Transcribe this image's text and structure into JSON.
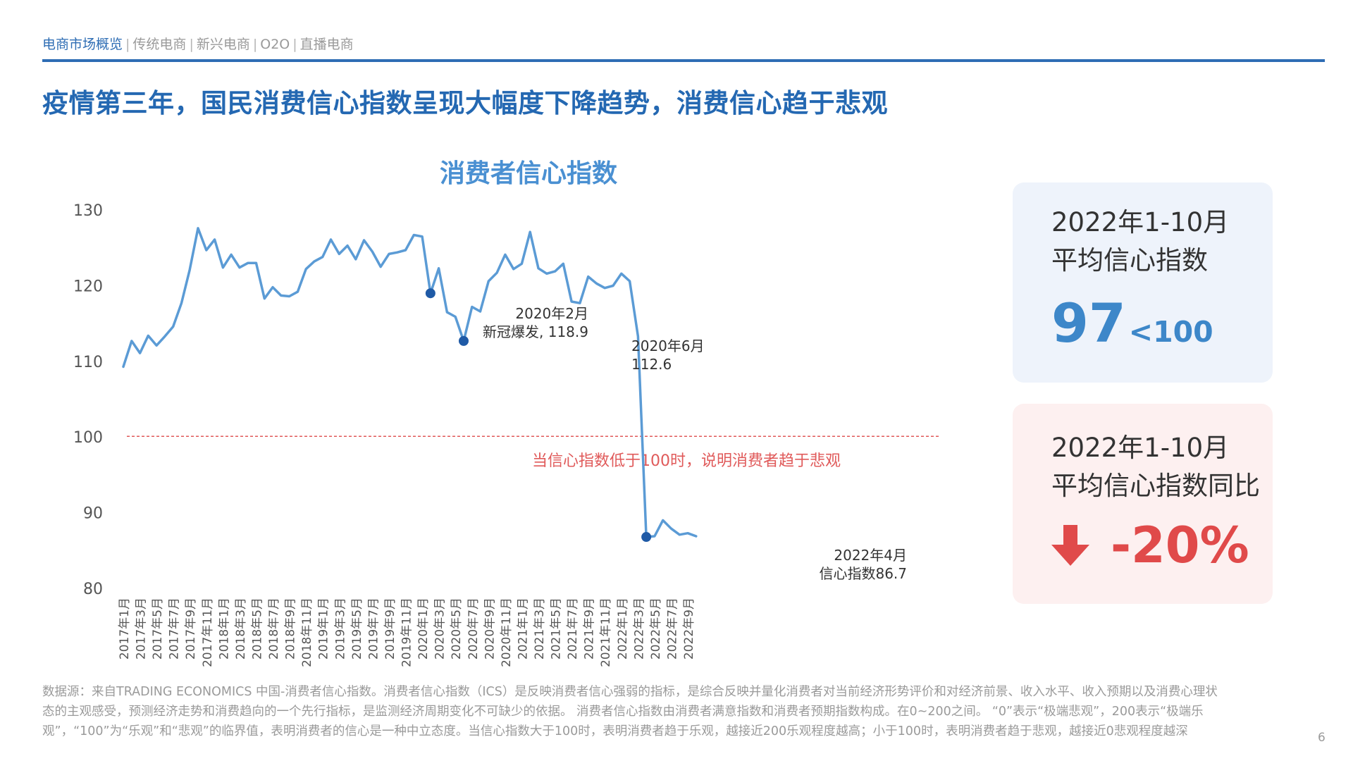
{
  "nav": {
    "items": [
      {
        "label": "电商市场概览",
        "active": true
      },
      {
        "label": "传统电商",
        "active": false
      },
      {
        "label": "新兴电商",
        "active": false
      },
      {
        "label": "O2O",
        "active": false
      },
      {
        "label": "直播电商",
        "active": false
      }
    ],
    "separator": "|"
  },
  "headline": "疫情第三年，国民消费信心指数呈现大幅度下降趋势，消费信心趋于悲观",
  "colors": {
    "brand_blue": "#2e6db4",
    "line": "#5b9bd5",
    "threshold": "#e05a5a",
    "warning_red": "#e04a4a"
  },
  "chart_data": {
    "type": "line",
    "title": "消费者信心指数",
    "ylim": [
      80,
      130
    ],
    "y_ticks": [
      130,
      120,
      110,
      100,
      90,
      80
    ],
    "x_tick_labels": [
      "2017年1月",
      "2017年3月",
      "2017年5月",
      "2017年7月",
      "2017年9月",
      "2017年11月",
      "2018年1月",
      "2018年3月",
      "2018年5月",
      "2018年7月",
      "2018年9月",
      "2018年11月",
      "2019年1月",
      "2019年3月",
      "2019年5月",
      "2019年7月",
      "2019年9月",
      "2019年11月",
      "2020年1月",
      "2020年3月",
      "2020年5月",
      "2020年7月",
      "2020年9月",
      "2020年11月",
      "2021年1月",
      "2021年3月",
      "2021年5月",
      "2021年7月",
      "2021年9月",
      "2021年11月",
      "2022年1月",
      "2022年3月",
      "2022年5月",
      "2022年7月",
      "2022年9月"
    ],
    "x": [
      "2017-01",
      "2017-02",
      "2017-03",
      "2017-04",
      "2017-05",
      "2017-06",
      "2017-07",
      "2017-08",
      "2017-09",
      "2017-10",
      "2017-11",
      "2017-12",
      "2018-01",
      "2018-02",
      "2018-03",
      "2018-04",
      "2018-05",
      "2018-06",
      "2018-07",
      "2018-08",
      "2018-09",
      "2018-10",
      "2018-11",
      "2018-12",
      "2019-01",
      "2019-02",
      "2019-03",
      "2019-04",
      "2019-05",
      "2019-06",
      "2019-07",
      "2019-08",
      "2019-09",
      "2019-10",
      "2019-11",
      "2019-12",
      "2020-01",
      "2020-02",
      "2020-03",
      "2020-04",
      "2020-05",
      "2020-06",
      "2020-07",
      "2020-08",
      "2020-09",
      "2020-10",
      "2020-11",
      "2020-12",
      "2021-01",
      "2021-02",
      "2021-03",
      "2021-04",
      "2021-05",
      "2021-06",
      "2021-07",
      "2021-08",
      "2021-09",
      "2021-10",
      "2021-11",
      "2021-12",
      "2022-01",
      "2022-02",
      "2022-03",
      "2022-04",
      "2022-05",
      "2022-06",
      "2022-07",
      "2022-08",
      "2022-09",
      "2022-10"
    ],
    "values": [
      109.2,
      112.6,
      111.0,
      113.3,
      112.0,
      113.2,
      114.5,
      117.6,
      122.0,
      127.5,
      124.6,
      126.0,
      122.3,
      124.0,
      122.3,
      122.9,
      122.9,
      118.2,
      119.7,
      118.6,
      118.5,
      119.1,
      122.1,
      123.1,
      123.7,
      126.0,
      124.1,
      125.2,
      123.4,
      125.9,
      124.4,
      122.4,
      124.1,
      124.3,
      124.6,
      126.6,
      126.4,
      118.9,
      122.2,
      116.4,
      115.8,
      112.6,
      117.1,
      116.5,
      120.5,
      121.6,
      124.0,
      122.1,
      122.8,
      127.0,
      122.2,
      121.5,
      121.8,
      122.8,
      117.8,
      117.6,
      121.1,
      120.2,
      119.6,
      119.9,
      121.5,
      120.5,
      113.2,
      86.7,
      86.8,
      88.9,
      87.8,
      87.0,
      87.2,
      86.8
    ],
    "threshold": 100,
    "threshold_label": "当信心指数低于100时，说明消费者趋于悲观",
    "annotations": [
      {
        "x": "2020-02",
        "value": 118.9,
        "lines": [
          "2020年2月",
          "新冠爆发, 118.9"
        ]
      },
      {
        "x": "2020-06",
        "value": 112.6,
        "lines": [
          "2020年6月",
          "112.6"
        ]
      },
      {
        "x": "2022-04",
        "value": 86.7,
        "lines": [
          "2022年4月",
          "信心指数86.7"
        ]
      }
    ],
    "grid": false,
    "legend": "none"
  },
  "cards": {
    "average": {
      "label_line1": "2022年1-10月",
      "label_line2": "平均信心指数",
      "value": "97",
      "comparison": "<100"
    },
    "change": {
      "label_line1": "2022年1-10月",
      "label_line2": "平均信心指数同比",
      "value": "-20%",
      "icon": "arrow-down-icon"
    }
  },
  "source": "数据源：来自TRADING ECONOMICS 中国-消费者信心指数。消费者信心指数（ICS）是反映消费者信心强弱的指标，是综合反映并量化消费者对当前经济形势评价和对经济前景、收入水平、收入预期以及消费心理状态的主观感受，预测经济走势和消费趋向的一个先行指标，是监测经济周期变化不可缺少的依据。 消费者信心指数由消费者满意指数和消费者预期指数构成。在0~200之间。 “0”表示“极端悲观”，200表示“极端乐观”，“100”为“乐观”和“悲观”的临界值，表明消费者的信心是一种中立态度。当信心指数大于100时，表明消费者趋于乐观，越接近200乐观程度越高；小于100时，表明消费者趋于悲观，越接近0悲观程度越深",
  "page_number": "6"
}
